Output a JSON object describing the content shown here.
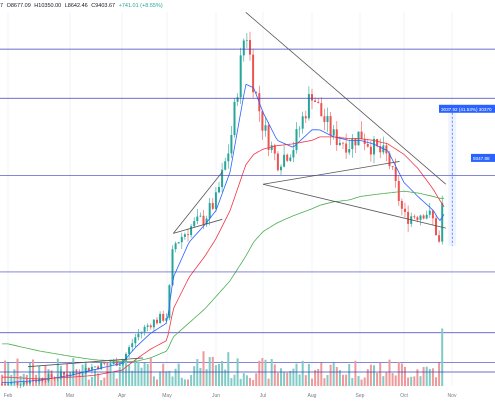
{
  "header": {
    "prefix": "7",
    "open": "O8677.09",
    "high": "H10350.00",
    "low": "L8642.46",
    "close": "C9403.67",
    "change": "+741.01 (+8.55%)"
  },
  "colors": {
    "up": "#26a69a",
    "down": "#ef5350",
    "vol_up": "#80cbc4",
    "vol_down": "#ef9a9a",
    "ma_fast": "#2962ff",
    "ma_mid": "#f23645",
    "ma_slow": "#4caf50",
    "level_line": "#3f3fbf",
    "trend_line": "#555555",
    "label_bg": "#2962ff"
  },
  "chart_data": {
    "type": "candlestick",
    "x_axis": {
      "labels": [
        "Feb",
        "Mar",
        "Apr",
        "May",
        "Jun",
        "Jul",
        "Aug",
        "Sep",
        "Oct",
        "Nov"
      ]
    },
    "y_axis": {
      "ylim": [
        3400,
        14400
      ]
    },
    "price_labels": {
      "measure": "3037.92 (41.53%) 30370",
      "current": "9347.88"
    },
    "horizontal_levels": [
      13000,
      11600,
      9400,
      6650,
      3800
    ],
    "volume_levels": [
      0.32,
      0.72
    ],
    "trendlines": [
      {
        "name": "descending-resistance",
        "from": [
          "Jun 20",
          14050
        ],
        "to": [
          "Oct 28",
          9150
        ]
      },
      {
        "name": "neckline",
        "from": [
          "Jul 1",
          9150
        ],
        "to": [
          "Sep 28",
          9800
        ]
      },
      {
        "name": "support",
        "from": [
          "Jul 1",
          9150
        ],
        "to": [
          "Oct 28",
          7900
        ]
      },
      {
        "name": "pennant-upper",
        "from": [
          "May 5",
          7750
        ],
        "to": [
          "Jun 5",
          9500
        ]
      },
      {
        "name": "pennant-lower",
        "from": [
          "May 5",
          7750
        ],
        "to": [
          "Jun 5",
          8150
        ]
      },
      {
        "name": "march-channel",
        "from": [
          "Feb 10",
          3950
        ],
        "to": [
          "Apr 15",
          4200
        ]
      }
    ],
    "series": [
      {
        "name": "price",
        "x": [
          "Feb 1",
          "Feb 15",
          "Mar 1",
          "Mar 15",
          "Apr 1",
          "Apr 10",
          "Apr 20",
          "May 1",
          "May 5",
          "May 15",
          "May 25",
          "Jun 1",
          "Jun 10",
          "Jun 20",
          "Jun 25",
          "Jul 1",
          "Jul 10",
          "Jul 20",
          "Aug 1",
          "Aug 6",
          "Aug 15",
          "Aug 25",
          "Sep 1",
          "Sep 10",
          "Sep 20",
          "Oct 1",
          "Oct 10",
          "Oct 15",
          "Oct 20",
          "Oct 24",
          "Oct 27"
        ],
        "values": [
          3450,
          3600,
          3750,
          3950,
          4100,
          4800,
          5200,
          5400,
          7400,
          7900,
          8200,
          8700,
          10300,
          13700,
          12000,
          10800,
          9800,
          10200,
          11800,
          11200,
          10500,
          10300,
          10600,
          10200,
          9900,
          8200,
          8300,
          8400,
          8100,
          7400,
          9400
        ]
      },
      {
        "name": "ma_fast",
        "values": [
          3500,
          3560,
          3700,
          3860,
          4050,
          4500,
          4900,
          5200,
          6500,
          7500,
          8000,
          8400,
          9500,
          12000,
          11900,
          11200,
          10400,
          10200,
          10700,
          10700,
          10500,
          10400,
          10400,
          10300,
          10100,
          9200,
          8800,
          8600,
          8400,
          8100,
          8300
        ]
      },
      {
        "name": "ma_mid",
        "values": [
          3650,
          3600,
          3650,
          3700,
          3850,
          4150,
          4450,
          4700,
          5600,
          6500,
          7100,
          7600,
          8400,
          9700,
          10000,
          10150,
          10250,
          10300,
          10400,
          10500,
          10500,
          10450,
          10450,
          10400,
          10300,
          10000,
          9600,
          9300,
          9000,
          8700,
          8500
        ]
      },
      {
        "name": "ma_slow",
        "values": [
          4600,
          4400,
          4250,
          4150,
          4100,
          4100,
          4200,
          4400,
          4800,
          5200,
          5600,
          5950,
          6400,
          7100,
          7500,
          7800,
          8050,
          8250,
          8450,
          8550,
          8650,
          8700,
          8800,
          8850,
          8900,
          8950,
          8900,
          8850,
          8800,
          8750,
          8750
        ]
      }
    ]
  }
}
